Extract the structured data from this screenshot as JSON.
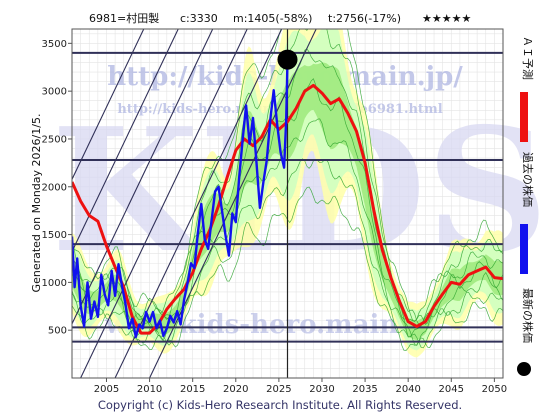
{
  "header": {
    "code_name": "6981=村田製",
    "current": "c:3330",
    "mean": "m:1405(-58%)",
    "target": "t:2756(-17%)",
    "stars": "★★★★★"
  },
  "left_label": "Generated on Monday 2026/1/5.",
  "footer": "Copyright (c) Kids-Hero Research Institute. All Rights Reserved.",
  "watermarks": {
    "url_main": "http://kids-hero.main.jp/",
    "url_code": "http://kids-hero.main.jp/code/code6981.html",
    "bottom_url": "www.kids-hero.main.jp",
    "logo": "KIDS"
  },
  "legend": {
    "ai_forecast": "ＡＩ予測",
    "past_price": "過去の株価",
    "latest_price": "最新の株価"
  },
  "colors": {
    "ai_forecast": "#ee1111",
    "past_price": "#1111ee",
    "latest_marker": "#000000",
    "band_light": "#ffffa8",
    "band_mid": "#cfffc0",
    "band_dark": "#7ddd55",
    "channel_line": "#303058"
  },
  "chart_data": {
    "type": "line",
    "title": "",
    "xlabel": "",
    "ylabel": "",
    "xlim": [
      2001,
      2051
    ],
    "ylim": [
      0,
      3650
    ],
    "x_ticks": [
      2005,
      2010,
      2015,
      2020,
      2025,
      2030,
      2035,
      2040,
      2045,
      2050
    ],
    "y_ticks": [
      500,
      1000,
      1500,
      2000,
      2500,
      3000,
      3500
    ],
    "horizontal_levels": [
      380,
      530,
      1400,
      2280,
      3400
    ],
    "current_marker": {
      "x": 2026.0,
      "y": 3330
    },
    "now_year": 2026.0,
    "series": [
      {
        "name": "ＡＩ予測",
        "color": "#ee1111",
        "points": [
          [
            2001,
            2050
          ],
          [
            2002,
            1850
          ],
          [
            2003,
            1700
          ],
          [
            2004,
            1640
          ],
          [
            2005,
            1380
          ],
          [
            2006,
            1160
          ],
          [
            2007,
            950
          ],
          [
            2008,
            640
          ],
          [
            2009,
            470
          ],
          [
            2010,
            470
          ],
          [
            2011,
            560
          ],
          [
            2012,
            720
          ],
          [
            2013,
            830
          ],
          [
            2014,
            930
          ],
          [
            2015,
            1100
          ],
          [
            2016,
            1350
          ],
          [
            2017,
            1550
          ],
          [
            2018,
            1800
          ],
          [
            2019,
            2100
          ],
          [
            2020,
            2380
          ],
          [
            2021,
            2500
          ],
          [
            2022,
            2430
          ],
          [
            2023,
            2520
          ],
          [
            2024,
            2700
          ],
          [
            2025,
            2600
          ],
          [
            2026,
            2680
          ],
          [
            2027,
            2820
          ],
          [
            2028,
            3000
          ],
          [
            2029,
            3060
          ],
          [
            2030,
            2980
          ],
          [
            2031,
            2870
          ],
          [
            2032,
            2920
          ],
          [
            2033,
            2770
          ],
          [
            2034,
            2580
          ],
          [
            2035,
            2250
          ],
          [
            2036,
            1760
          ],
          [
            2037,
            1340
          ],
          [
            2038,
            1050
          ],
          [
            2039,
            800
          ],
          [
            2040,
            590
          ],
          [
            2041,
            540
          ],
          [
            2042,
            590
          ],
          [
            2043,
            750
          ],
          [
            2044,
            880
          ],
          [
            2045,
            1000
          ],
          [
            2046,
            980
          ],
          [
            2047,
            1080
          ],
          [
            2048,
            1120
          ],
          [
            2049,
            1160
          ],
          [
            2050,
            1050
          ],
          [
            2051,
            1040
          ]
        ]
      },
      {
        "name": "過去の株価",
        "color": "#1111ee",
        "points": [
          [
            2001.0,
            1480
          ],
          [
            2001.3,
            950
          ],
          [
            2001.6,
            1250
          ],
          [
            2002.0,
            760
          ],
          [
            2002.4,
            540
          ],
          [
            2002.8,
            1000
          ],
          [
            2003.2,
            620
          ],
          [
            2003.6,
            800
          ],
          [
            2004.0,
            640
          ],
          [
            2004.4,
            1080
          ],
          [
            2004.8,
            870
          ],
          [
            2005.2,
            760
          ],
          [
            2005.6,
            1120
          ],
          [
            2006.0,
            860
          ],
          [
            2006.4,
            1190
          ],
          [
            2006.8,
            960
          ],
          [
            2007.2,
            780
          ],
          [
            2007.6,
            520
          ],
          [
            2008.0,
            620
          ],
          [
            2008.4,
            430
          ],
          [
            2008.8,
            560
          ],
          [
            2009.2,
            520
          ],
          [
            2009.6,
            690
          ],
          [
            2010.0,
            590
          ],
          [
            2010.4,
            690
          ],
          [
            2010.8,
            520
          ],
          [
            2011.2,
            600
          ],
          [
            2011.6,
            440
          ],
          [
            2012.0,
            520
          ],
          [
            2012.4,
            650
          ],
          [
            2012.8,
            580
          ],
          [
            2013.2,
            700
          ],
          [
            2013.6,
            560
          ],
          [
            2014.0,
            820
          ],
          [
            2014.4,
            990
          ],
          [
            2014.8,
            1200
          ],
          [
            2015.2,
            1150
          ],
          [
            2015.6,
            1520
          ],
          [
            2016.0,
            1820
          ],
          [
            2016.4,
            1450
          ],
          [
            2016.8,
            1350
          ],
          [
            2017.2,
            1650
          ],
          [
            2017.6,
            1950
          ],
          [
            2018.0,
            2000
          ],
          [
            2018.4,
            1750
          ],
          [
            2018.8,
            1500
          ],
          [
            2019.2,
            1280
          ],
          [
            2019.6,
            1720
          ],
          [
            2020.0,
            1630
          ],
          [
            2020.4,
            2100
          ],
          [
            2020.8,
            2500
          ],
          [
            2021.2,
            2850
          ],
          [
            2021.6,
            2450
          ],
          [
            2022.0,
            2720
          ],
          [
            2022.4,
            2250
          ],
          [
            2022.8,
            1780
          ],
          [
            2023.2,
            2050
          ],
          [
            2023.6,
            2280
          ],
          [
            2024.0,
            2700
          ],
          [
            2024.4,
            3010
          ],
          [
            2024.8,
            2650
          ],
          [
            2025.2,
            2360
          ],
          [
            2025.6,
            2200
          ],
          [
            2025.85,
            2700
          ],
          [
            2026.0,
            3330
          ]
        ]
      }
    ]
  }
}
